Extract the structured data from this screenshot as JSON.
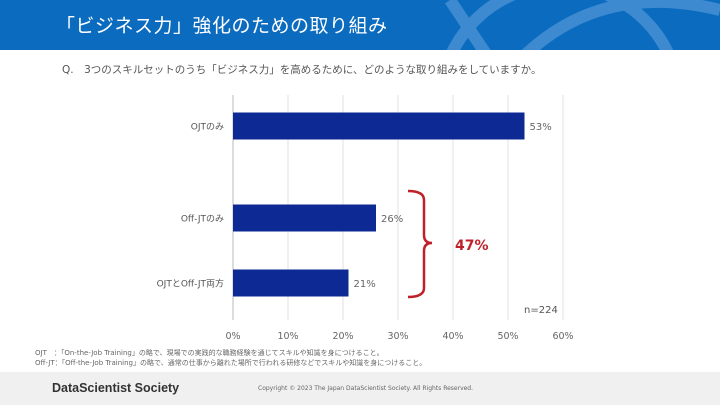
{
  "header": {
    "title": "「ビジネス力」強化のための取り組み"
  },
  "question": "Q.　3つのスキルセットのうち「ビジネス力」を高めるために、どのような取り組みをしていますか。",
  "chart_data": {
    "type": "bar",
    "orientation": "horizontal",
    "categories": [
      "OJTのみ",
      "Off-JTのみ",
      "OJTとOff-JT両方"
    ],
    "values": [
      53,
      26,
      21
    ],
    "data_labels": [
      "53%",
      "26%",
      "21%"
    ],
    "xlim": [
      0,
      60
    ],
    "xticks": [
      "0%",
      "10%",
      "20%",
      "30%",
      "40%",
      "50%",
      "60%"
    ],
    "grid": true,
    "bar_color": "#0d2a94",
    "annotation": {
      "text": "47%",
      "color": "#c0202a",
      "brackets": [
        "Off-JTのみ",
        "OJTとOff-JT両方"
      ]
    },
    "n_label": "n=224"
  },
  "notes": [
    "OJT　：「On-the-Job Training」の略で、現場での実践的な職務経験を通じてスキルや知識を身につけること。",
    "Off-JT：「Off-the-Job Training」の略で、通常の仕事から離れた場所で行われる研修などでスキルや知識を身につけること。"
  ],
  "footer": {
    "brand": "DataScientist Society",
    "copyright": "Copyright © 2023  The Japan DataScientist Society. All Rights Reserved."
  }
}
